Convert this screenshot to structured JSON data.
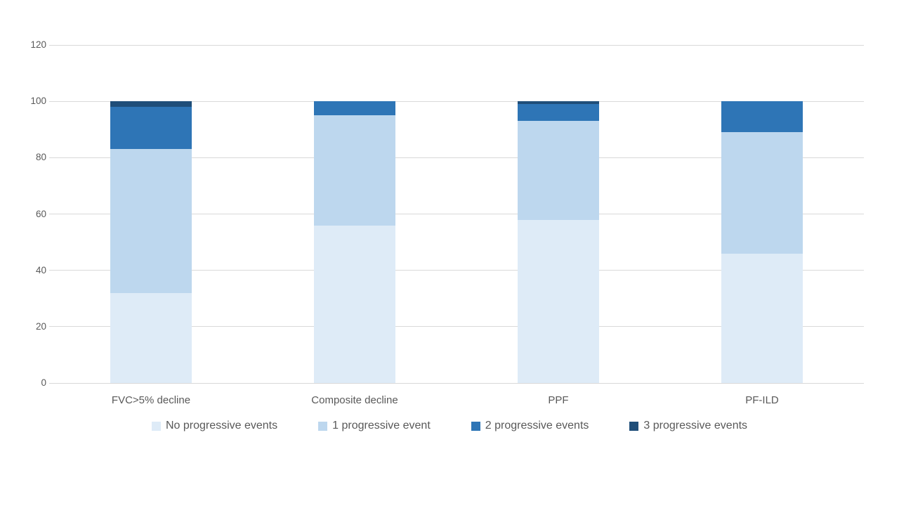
{
  "page": {
    "background_color": "#ffffff",
    "text_color": "#595959",
    "gridline_color": "#d9d9d9"
  },
  "chart_data": {
    "type": "bar",
    "stacked": true,
    "title": "",
    "xlabel": "",
    "ylabel": "",
    "categories": [
      "FVC>5% decline",
      "Composite decline",
      "PPF",
      "PF-ILD"
    ],
    "series": [
      {
        "name": "No progressive events",
        "color": "#DEEBF7",
        "values": [
          32,
          56,
          58,
          46
        ]
      },
      {
        "name": "1 progressive event",
        "color": "#BDD7EE",
        "values": [
          51,
          39,
          35,
          43
        ]
      },
      {
        "name": "2 progressive events",
        "color": "#2E75B6",
        "values": [
          15,
          5,
          6,
          11
        ]
      },
      {
        "name": "3 progressive events",
        "color": "#1F4E79",
        "values": [
          2,
          0,
          1,
          0
        ]
      }
    ],
    "ylim": [
      0,
      120
    ],
    "y_ticks": [
      0,
      20,
      40,
      60,
      80,
      100,
      120
    ],
    "grid": true,
    "legend_position": "bottom"
  }
}
